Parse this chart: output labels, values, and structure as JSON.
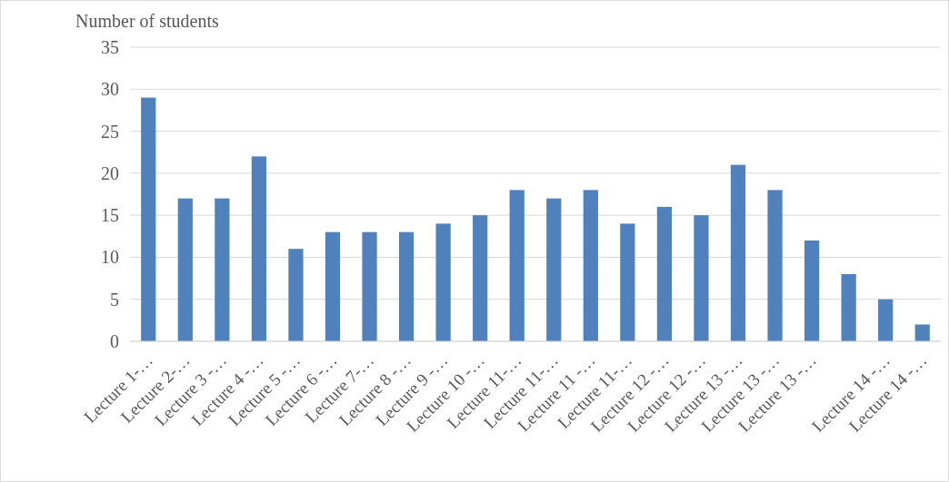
{
  "chart_data": {
    "type": "bar",
    "ylabel": "Number of students",
    "categories": [
      "Lecture 1-…",
      "Lecture 2-…",
      "Lecture 3 -…",
      "Lecture 4 -…",
      "Lecture 5 -…",
      "Lecture 6 -…",
      "Lecture 7-…",
      "Lecture 8 -…",
      "Lecture 9 -…",
      "Lecture 10 -…",
      "Lecture 11-…",
      "Lecture 11-…",
      "Lecture 11 -…",
      "Lecture 11-…",
      "Lecture 12 -…",
      "Lecture 12 -…",
      "Lecture 13 -…",
      "Lecture 13 -…",
      "Lecture 13 -…",
      null,
      "Lecture 14 -…",
      "Lecture 14 -…"
    ],
    "values": [
      29,
      17,
      17,
      22,
      11,
      13,
      13,
      13,
      14,
      15,
      18,
      17,
      18,
      14,
      16,
      15,
      21,
      18,
      12,
      8,
      5,
      2
    ],
    "color": "#4f81bd",
    "ylim": [
      0,
      35
    ],
    "yticks": [
      0,
      5,
      10,
      15,
      20,
      25,
      30,
      35
    ],
    "grid": "y"
  }
}
